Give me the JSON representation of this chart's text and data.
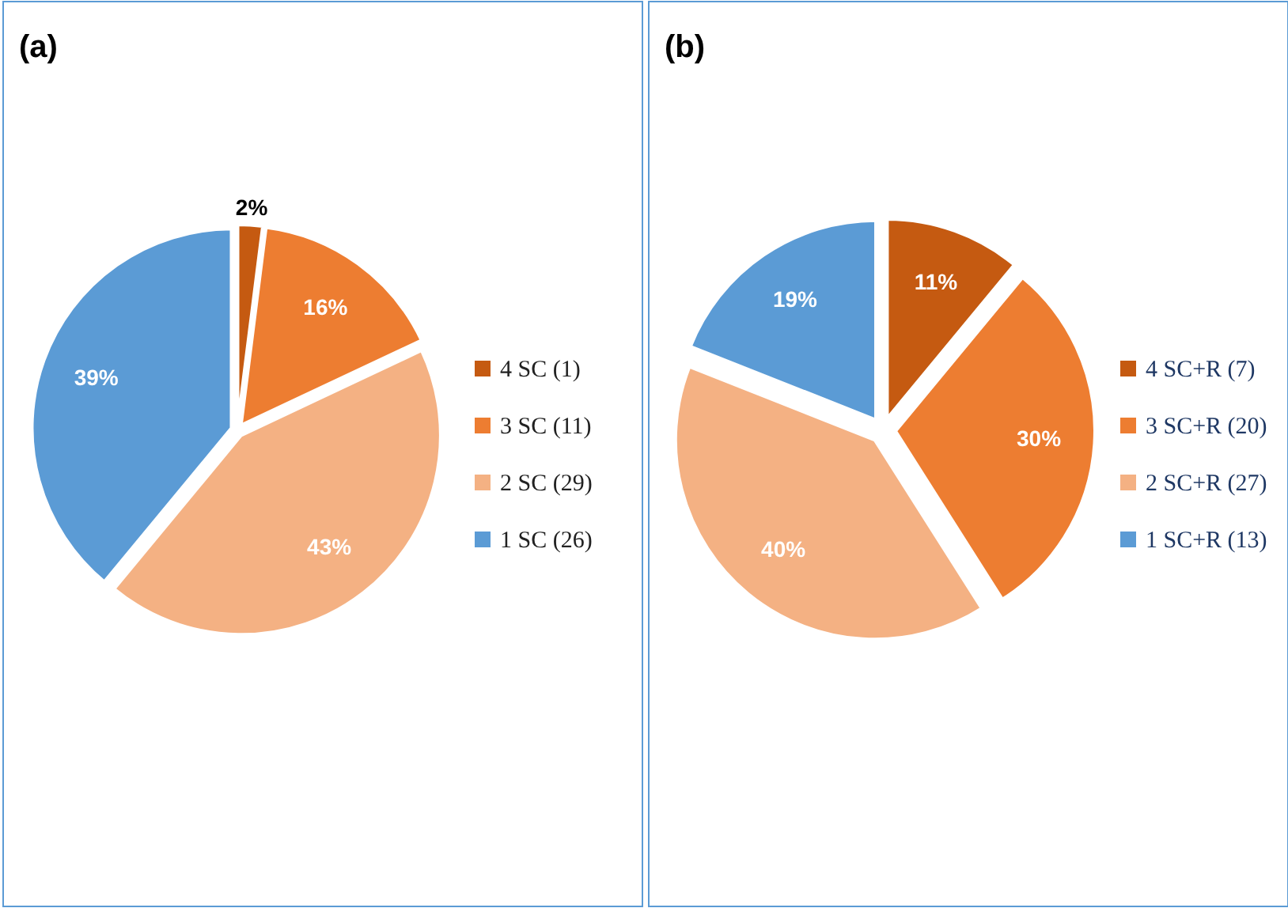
{
  "chart_data": [
    {
      "type": "pie",
      "title": "(a)",
      "categories": [
        "4 SC (1)",
        "3 SC (11)",
        "2 SC (29)",
        "1 SC (26)"
      ],
      "values": [
        2,
        16,
        43,
        39
      ],
      "colors": [
        "#c55a11",
        "#ed7d31",
        "#f4b183",
        "#5b9bd5"
      ],
      "value_labels": [
        "2%",
        "16%",
        "43%",
        "39%"
      ],
      "legend": "right"
    },
    {
      "type": "pie",
      "title": "(b)",
      "categories": [
        "4 SC+R (7)",
        "3 SC+R (20)",
        "2 SC+R (27)",
        "1 SC+R (13)"
      ],
      "values": [
        11,
        30,
        40,
        19
      ],
      "colors": [
        "#c55a11",
        "#ed7d31",
        "#f4b183",
        "#5b9bd5"
      ],
      "value_labels": [
        "11%",
        "30%",
        "40%",
        "19%"
      ],
      "legend": "right"
    }
  ]
}
